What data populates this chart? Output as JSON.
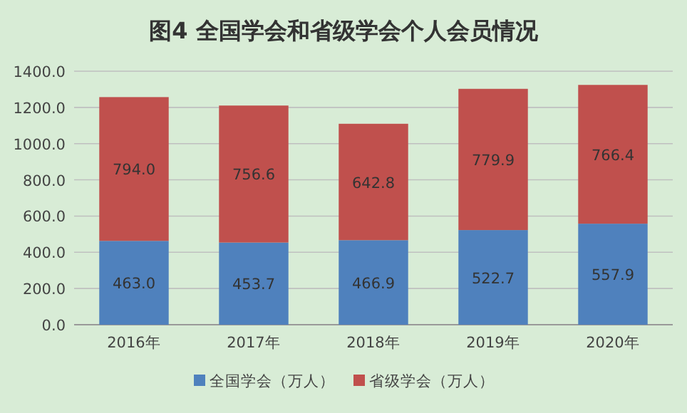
{
  "chart_data": {
    "type": "bar",
    "title": "图4  全国学会和省级学会个人会员情况",
    "stacked": true,
    "categories": [
      "2016年",
      "2017年",
      "2018年",
      "2019年",
      "2020年"
    ],
    "series": [
      {
        "name": "全国学会（万人）",
        "color": "#4f81bd",
        "values": [
          463.0,
          453.7,
          466.9,
          522.7,
          557.9
        ],
        "value_labels": [
          "463.0",
          "453.7",
          "466.9",
          "522.7",
          "557.9"
        ]
      },
      {
        "name": "省级学会（万人）",
        "color": "#c0504d",
        "values": [
          794.0,
          756.6,
          642.8,
          779.9,
          766.4
        ],
        "value_labels": [
          "794.0",
          "756.6",
          "642.8",
          "779.9",
          "766.4"
        ]
      }
    ],
    "ylim": [
      0,
      1400
    ],
    "yticks": [
      {
        "value": 0,
        "label": "0.0"
      },
      {
        "value": 200,
        "label": "200.0"
      },
      {
        "value": 400,
        "label": "400.0"
      },
      {
        "value": 600,
        "label": "600.0"
      },
      {
        "value": 800,
        "label": "800.0"
      },
      {
        "value": 1000,
        "label": "1000.0"
      },
      {
        "value": 1200,
        "label": "1200.0"
      },
      {
        "value": 1400,
        "label": "1400.0"
      }
    ],
    "grid": "y",
    "legend": "bottom"
  }
}
